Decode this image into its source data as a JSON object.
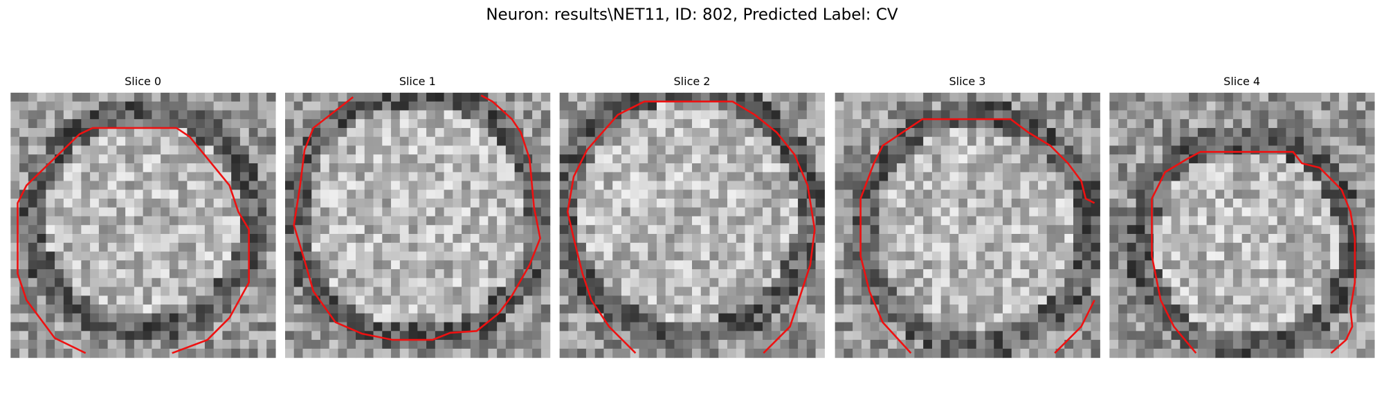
{
  "title": "Neuron: results\\NET11, ID: 802, Predicted Label: CV",
  "panels": [
    {
      "title": "Slice 0"
    },
    {
      "title": "Slice 1"
    },
    {
      "title": "Slice 2"
    },
    {
      "title": "Slice 3"
    },
    {
      "title": "Slice 4"
    }
  ]
}
